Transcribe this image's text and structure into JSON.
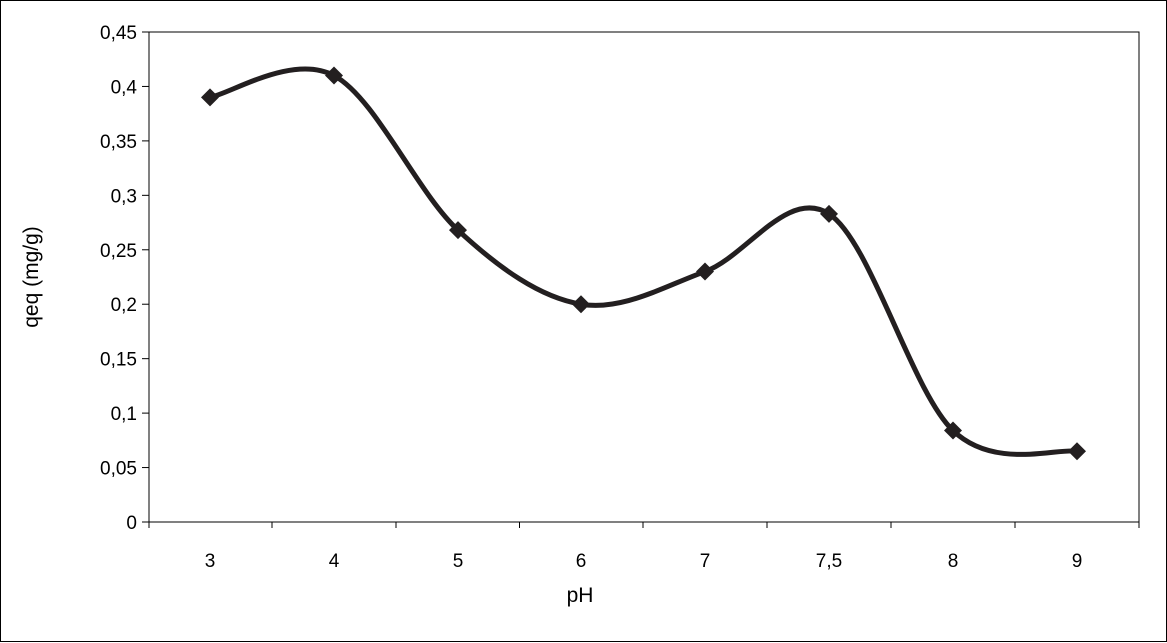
{
  "chart_data": {
    "type": "line",
    "title": "",
    "xlabel": "pH",
    "ylabel": "qeq (mg/g)",
    "categories": [
      "3",
      "4",
      "5",
      "6",
      "7",
      "7,5",
      "8",
      "9"
    ],
    "series": [
      {
        "values": [
          0.39,
          0.41,
          0.268,
          0.2,
          0.23,
          0.283,
          0.084,
          0.065
        ],
        "color": "#231f20",
        "marker": "diamond",
        "smooth": true
      }
    ],
    "ylim": [
      0,
      0.45
    ],
    "yticks": [
      0,
      0.05,
      0.1,
      0.15,
      0.2,
      0.25,
      0.3,
      0.35,
      0.4,
      0.45
    ],
    "ytick_labels": [
      "0",
      "0,05",
      "0,1",
      "0,15",
      "0,2",
      "0,25",
      "0,3",
      "0,35",
      "0,4",
      "0,45"
    ],
    "grid": false,
    "legend": "none"
  }
}
